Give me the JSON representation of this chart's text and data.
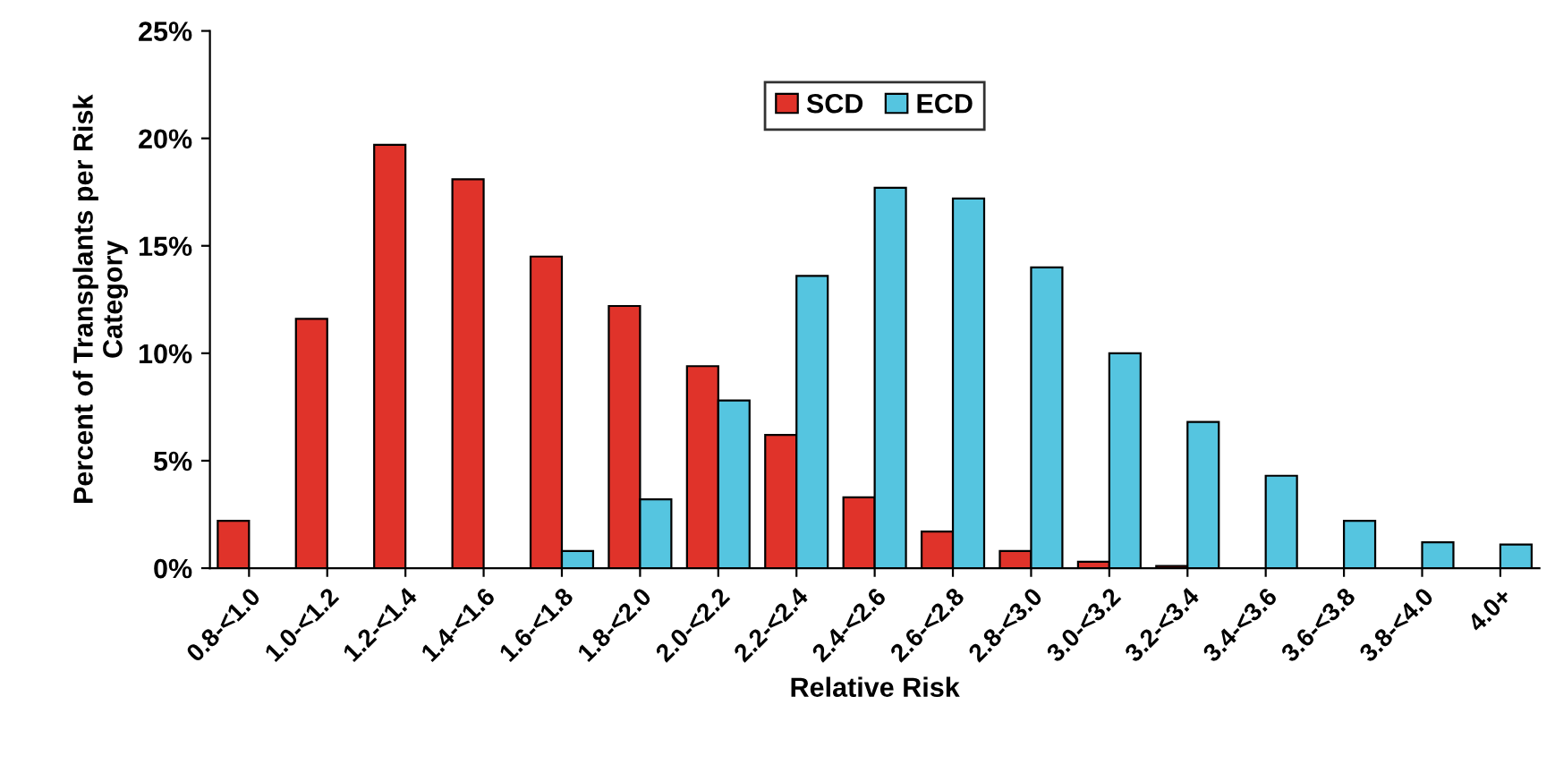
{
  "chart_data": {
    "type": "bar",
    "xlabel": "Relative Risk",
    "ylabel": "Percent of Transplants per Risk\nCategory",
    "categories": [
      "0.8-<1.0",
      "1.0-<1.2",
      "1.2-<1.4",
      "1.4-<1.6",
      "1.6-<1.8",
      "1.8-<2.0",
      "2.0-<2.2",
      "2.2-<2.4",
      "2.4-<2.6",
      "2.6-<2.8",
      "2.8-<3.0",
      "3.0-<3.2",
      "3.2-<3.4",
      "3.4-<3.6",
      "3.6-<3.8",
      "3.8-<4.0",
      "4.0+"
    ],
    "series": [
      {
        "name": "SCD",
        "color": "#e0332a",
        "values": [
          2.2,
          11.6,
          19.7,
          18.1,
          14.5,
          12.2,
          9.4,
          6.2,
          3.3,
          1.7,
          0.8,
          0.3,
          0.1,
          null,
          null,
          null,
          null
        ]
      },
      {
        "name": "ECD",
        "color": "#55c5e0",
        "values": [
          null,
          null,
          null,
          null,
          0.8,
          3.2,
          7.8,
          13.6,
          17.7,
          17.2,
          14.0,
          10.0,
          6.8,
          4.3,
          2.2,
          1.2,
          1.1
        ]
      }
    ],
    "ylim": [
      0,
      25
    ],
    "yticks": [
      {
        "value": 0,
        "label": "0%"
      },
      {
        "value": 5,
        "label": "5%"
      },
      {
        "value": 10,
        "label": "10%"
      },
      {
        "value": 15,
        "label": "15%"
      },
      {
        "value": 20,
        "label": "20%"
      },
      {
        "value": 25,
        "label": "25%"
      }
    ],
    "legend": "top",
    "grid": false
  }
}
